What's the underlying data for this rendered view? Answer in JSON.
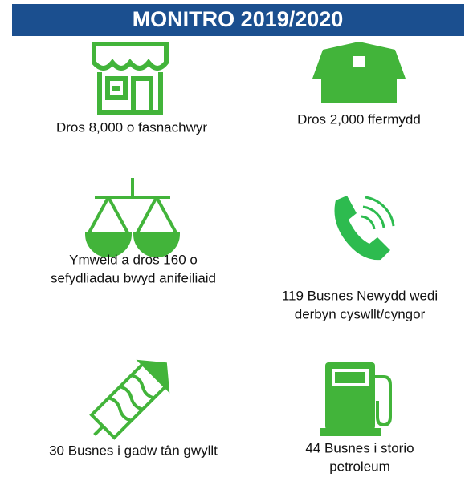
{
  "header": {
    "title": "MONITRO 2019/2020"
  },
  "items": [
    {
      "lines": [
        "Dros 8,000 o fasnachwyr"
      ]
    },
    {
      "lines": [
        "Dros 2,000 ffermydd"
      ]
    },
    {
      "lines": [
        "Ymweld a dros 160 o",
        "sefydliadau bwyd anifeiliaid"
      ]
    },
    {
      "lines": [
        "119 Busnes Newydd wedi",
        "derbyn cyswllt/cyngor"
      ]
    },
    {
      "lines": [
        "30 Busnes i gadw tân  gwyllt"
      ]
    },
    {
      "lines": [
        "44 Busnes i storio",
        "petroleum"
      ]
    }
  ]
}
